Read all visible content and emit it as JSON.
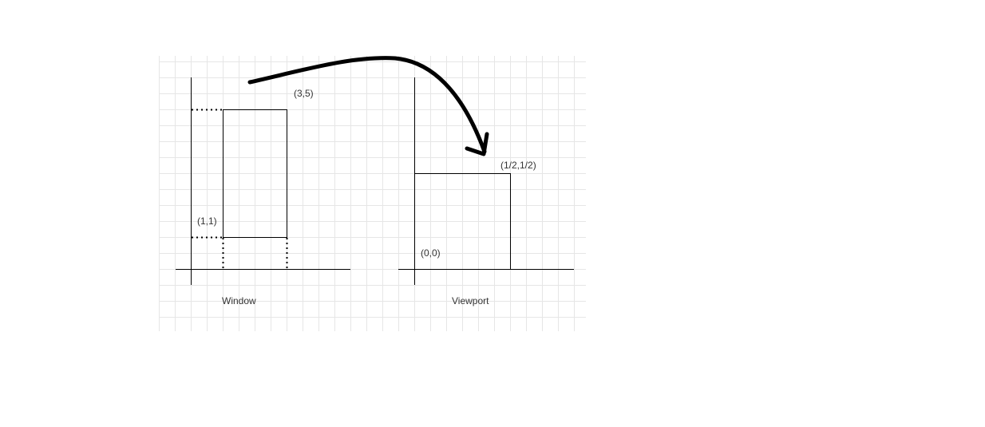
{
  "diagram": {
    "window": {
      "caption": "Window",
      "corner_min_label": "(1,1)",
      "corner_max_label": "(3,5)"
    },
    "viewport": {
      "caption": "Viewport",
      "corner_min_label": "(0,0)",
      "corner_max_label": "(1/2,1/2)"
    }
  },
  "colors": {
    "grid_line": "#e6e6e6",
    "stroke": "#000000",
    "text": "#333333"
  }
}
